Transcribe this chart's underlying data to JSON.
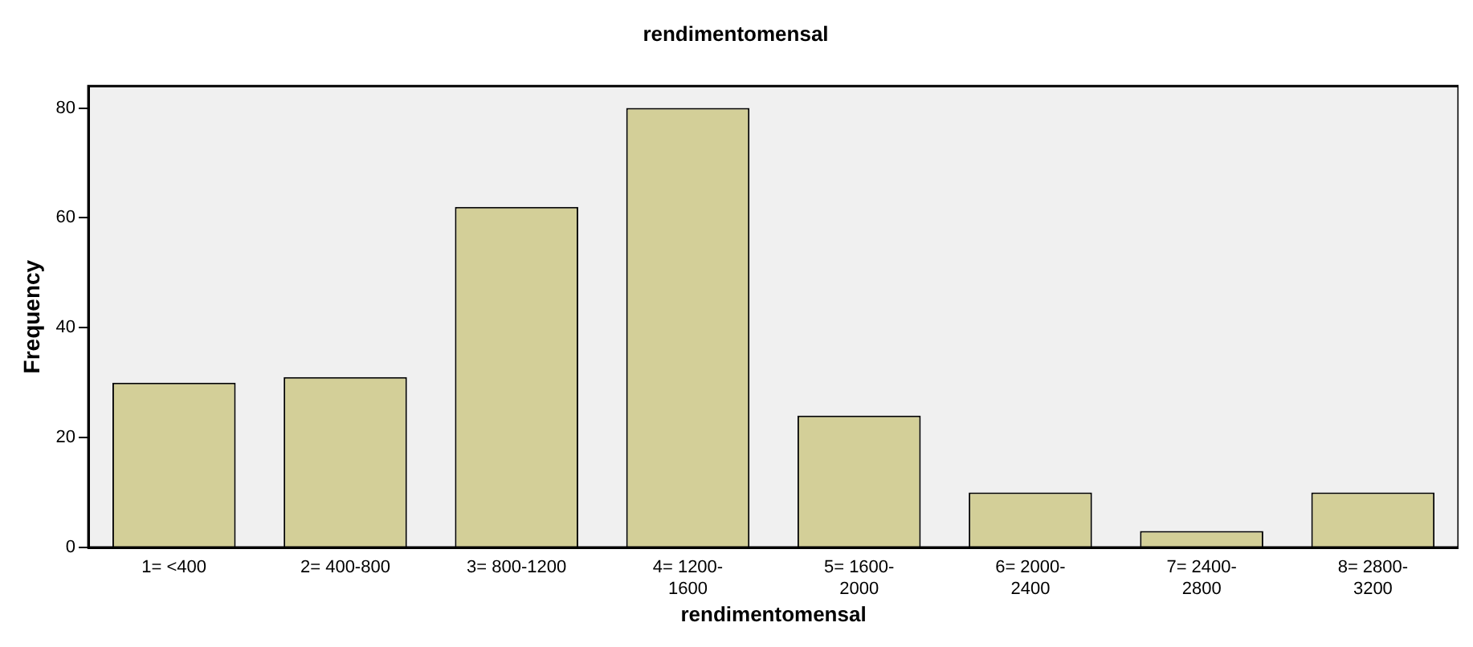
{
  "chart_data": {
    "type": "bar",
    "title": "rendimentomensal",
    "xlabel": "rendimentomensal",
    "ylabel": "Frequency",
    "categories": [
      "1= <400",
      "2= 400-800",
      "3= 800-1200",
      "4= 1200-1600",
      "5= 1600-2000",
      "6= 2000-2400",
      "7= 2400-2800",
      "8= 2800-3200"
    ],
    "values": [
      30,
      31,
      62,
      80,
      24,
      10,
      3,
      10
    ],
    "color": "#d3cf98",
    "ylim": [
      0,
      84
    ],
    "yticks": [
      0,
      20,
      40,
      60,
      80
    ],
    "grid": false,
    "legend": false
  }
}
